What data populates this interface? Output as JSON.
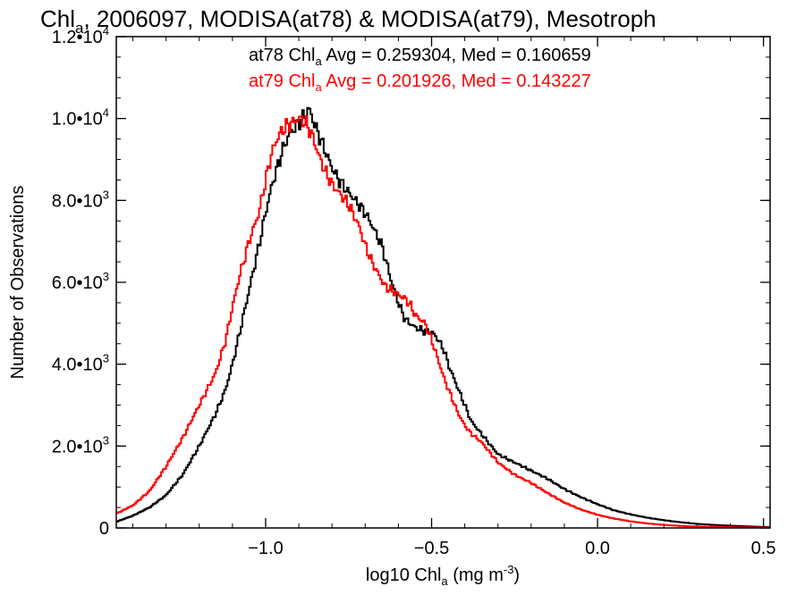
{
  "chart_data": {
    "type": "line",
    "title": {
      "prefix": "Chl",
      "prefix_sub": "a",
      "rest": ", 2006097, MODISA(at78) & MODISA(at79), Mesotroph"
    },
    "xlabel": {
      "prefix": "log10 Chl",
      "prefix_sub": "a",
      "units_open": " (mg m",
      "units_sup": "-3",
      "units_close": ")"
    },
    "ylabel": "Number of Observations",
    "xlim": [
      -1.45,
      0.52
    ],
    "ylim": [
      0,
      12000
    ],
    "x_ticks": [
      {
        "value": -1.0,
        "label": "−1.0"
      },
      {
        "value": -0.5,
        "label": "−0.5"
      },
      {
        "value": 0.0,
        "label": "0.0"
      },
      {
        "value": 0.5,
        "label": "0.5"
      }
    ],
    "y_ticks": [
      {
        "value": 0,
        "mantissa": "0",
        "exp": ""
      },
      {
        "value": 2000,
        "mantissa": "2.0•10",
        "exp": "3"
      },
      {
        "value": 4000,
        "mantissa": "4.0•10",
        "exp": "3"
      },
      {
        "value": 6000,
        "mantissa": "6.0•10",
        "exp": "3"
      },
      {
        "value": 8000,
        "mantissa": "8.0•10",
        "exp": "3"
      },
      {
        "value": 10000,
        "mantissa": "1.0•10",
        "exp": "4"
      },
      {
        "value": 12000,
        "mantissa": "1.2•10",
        "exp": "4"
      }
    ],
    "x_minor_step": 0.1,
    "y_minor_step": 500,
    "step_plot": true,
    "annotations": [
      {
        "series": "at78",
        "prefix": "at78 Chl",
        "sub": "a",
        "text": " Avg = 0.259304, Med = 0.160659",
        "color": "#000000"
      },
      {
        "series": "at79",
        "prefix": "at79 Chl",
        "sub": "a",
        "text": " Avg = 0.201926, Med = 0.143227",
        "color": "#ff0000"
      }
    ],
    "series": [
      {
        "id": "at78",
        "color": "#000000",
        "x": [
          -1.45,
          -1.4,
          -1.35,
          -1.3,
          -1.25,
          -1.2,
          -1.15,
          -1.12,
          -1.1,
          -1.08,
          -1.05,
          -1.02,
          -1.0,
          -0.98,
          -0.95,
          -0.93,
          -0.9,
          -0.88,
          -0.87,
          -0.85,
          -0.82,
          -0.8,
          -0.78,
          -0.75,
          -0.72,
          -0.7,
          -0.68,
          -0.65,
          -0.62,
          -0.6,
          -0.58,
          -0.55,
          -0.52,
          -0.5,
          -0.48,
          -0.46,
          -0.45,
          -0.42,
          -0.4,
          -0.38,
          -0.35,
          -0.32,
          -0.3,
          -0.25,
          -0.2,
          -0.15,
          -0.1,
          -0.05,
          0.0,
          0.05,
          0.1,
          0.15,
          0.2,
          0.25,
          0.3,
          0.35,
          0.4,
          0.45,
          0.5,
          0.52
        ],
        "y": [
          150,
          300,
          500,
          800,
          1300,
          2000,
          2800,
          3400,
          4000,
          4700,
          5800,
          6900,
          7700,
          8400,
          9200,
          9600,
          9900,
          10100,
          10250,
          9800,
          9200,
          8800,
          8500,
          8200,
          7900,
          7700,
          7400,
          6900,
          6000,
          5500,
          5100,
          4900,
          4800,
          4800,
          4600,
          4300,
          4000,
          3400,
          3000,
          2600,
          2300,
          2000,
          1800,
          1600,
          1400,
          1200,
          950,
          750,
          580,
          430,
          330,
          250,
          190,
          140,
          100,
          75,
          55,
          40,
          25,
          20
        ]
      },
      {
        "id": "at79",
        "color": "#ff0000",
        "x": [
          -1.45,
          -1.4,
          -1.35,
          -1.3,
          -1.25,
          -1.2,
          -1.15,
          -1.12,
          -1.1,
          -1.08,
          -1.05,
          -1.02,
          -1.0,
          -0.98,
          -0.96,
          -0.94,
          -0.92,
          -0.9,
          -0.88,
          -0.86,
          -0.84,
          -0.82,
          -0.8,
          -0.78,
          -0.75,
          -0.72,
          -0.7,
          -0.68,
          -0.66,
          -0.64,
          -0.62,
          -0.6,
          -0.58,
          -0.56,
          -0.55,
          -0.52,
          -0.5,
          -0.48,
          -0.46,
          -0.44,
          -0.42,
          -0.4,
          -0.38,
          -0.35,
          -0.32,
          -0.3,
          -0.25,
          -0.2,
          -0.15,
          -0.1,
          -0.05,
          0.0,
          0.05,
          0.1,
          0.15,
          0.2,
          0.25,
          0.3,
          0.35,
          0.4,
          0.45,
          0.5,
          0.52
        ],
        "y": [
          350,
          550,
          900,
          1500,
          2200,
          3000,
          3800,
          4600,
          5400,
          6100,
          7000,
          7700,
          8500,
          9200,
          9600,
          9800,
          9900,
          10000,
          9900,
          9600,
          9100,
          8700,
          8400,
          8200,
          7900,
          7400,
          6900,
          6500,
          6200,
          5900,
          5800,
          5700,
          5600,
          5400,
          5200,
          5000,
          4600,
          4100,
          3600,
          3200,
          2800,
          2500,
          2300,
          2100,
          1800,
          1600,
          1300,
          1100,
          850,
          620,
          450,
          320,
          230,
          160,
          110,
          75,
          50,
          35,
          25,
          18,
          14,
          10,
          8
        ]
      }
    ]
  }
}
